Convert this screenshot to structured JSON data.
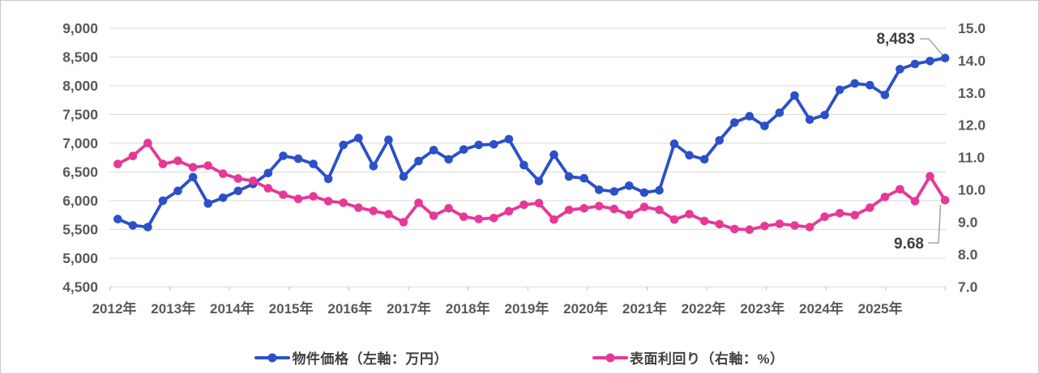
{
  "chart_data": {
    "type": "line",
    "title": "",
    "x_axis": {
      "unit": "quarter",
      "points_per_year": 4,
      "year_labels": [
        "2012年",
        "2013年",
        "2014年",
        "2015年",
        "2016年",
        "2017年",
        "2018年",
        "2019年",
        "2020年",
        "2021年",
        "2022年",
        "2023年",
        "2024年",
        "2025年"
      ]
    },
    "left_axis": {
      "min": 4500,
      "max": 9000,
      "step": 500,
      "tick_labels": [
        "9,000",
        "8,500",
        "8,000",
        "7,500",
        "7,000",
        "6,500",
        "6,000",
        "5,500",
        "5,000",
        "4,500"
      ]
    },
    "right_axis": {
      "min": 7.0,
      "max": 15.0,
      "step": 1.0,
      "tick_labels": [
        "15.0",
        "14.0",
        "13.0",
        "12.0",
        "11.0",
        "10.0",
        "9.0",
        "8.0",
        "7.0"
      ]
    },
    "grid": true,
    "legend_position": "bottom",
    "series": [
      {
        "name": "物件価格（左軸：万円）",
        "axis": "left",
        "color": "#2b50c8",
        "values": [
          5680,
          5570,
          5540,
          6000,
          6170,
          6410,
          5950,
          6050,
          6170,
          6290,
          6480,
          6780,
          6730,
          6640,
          6380,
          6970,
          7090,
          6600,
          7060,
          6420,
          6690,
          6880,
          6720,
          6890,
          6970,
          6980,
          7070,
          6620,
          6340,
          6800,
          6420,
          6390,
          6190,
          6160,
          6260,
          6140,
          6180,
          6990,
          6790,
          6720,
          7050,
          7360,
          7470,
          7300,
          7530,
          7830,
          7410,
          7490,
          7930,
          8040,
          8010,
          7840,
          8290,
          8380,
          8430,
          8483
        ]
      },
      {
        "name": "表面利回り（右軸：%）",
        "axis": "right",
        "color": "#e63897",
        "values": [
          10.8,
          11.05,
          11.45,
          10.8,
          10.9,
          10.7,
          10.75,
          10.5,
          10.35,
          10.28,
          10.05,
          9.85,
          9.72,
          9.8,
          9.65,
          9.6,
          9.45,
          9.35,
          9.25,
          9.0,
          9.6,
          9.2,
          9.43,
          9.17,
          9.1,
          9.13,
          9.34,
          9.54,
          9.59,
          9.08,
          9.38,
          9.43,
          9.5,
          9.41,
          9.23,
          9.47,
          9.38,
          9.08,
          9.25,
          9.04,
          8.94,
          8.79,
          8.77,
          8.88,
          8.95,
          8.9,
          8.85,
          9.17,
          9.28,
          9.22,
          9.45,
          9.78,
          10.02,
          9.65,
          10.42,
          9.68
        ]
      }
    ],
    "annotations": [
      {
        "target": "price-last-point",
        "label": "8,483"
      },
      {
        "target": "yield-last-point",
        "label": "9.68"
      }
    ]
  },
  "colors": {
    "grid": "#d9d9d9",
    "axis_tick": "#bfbfbf",
    "tick_text": "#595959",
    "annotation_text": "#3f3f3f",
    "leader_line": "#a6a6a6",
    "frame_border": "#c9c9c9",
    "background": "#ffffff"
  }
}
